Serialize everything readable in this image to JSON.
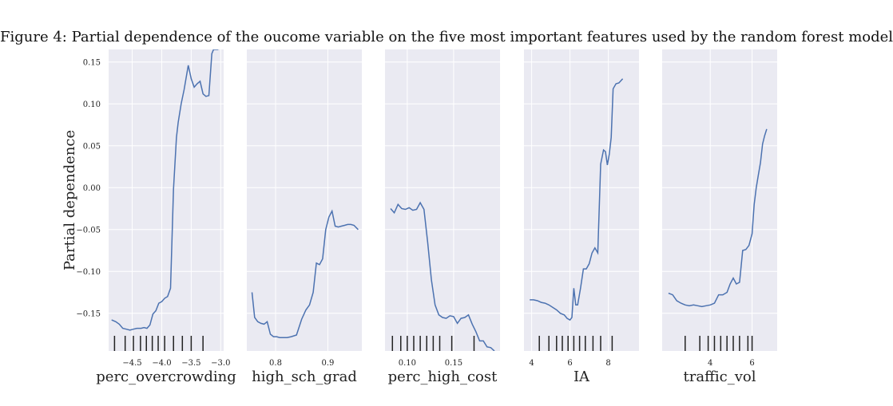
{
  "figure": {
    "title": "Figure 4: Partial dependence of the oucome variable on the five most important features used by the random forest model",
    "ylabel": "Partial dependence",
    "line_color": "#4c72b0",
    "panel_bg": "#eaeaf2",
    "grid_color": "#ffffff"
  },
  "chart_data": [
    {
      "type": "line",
      "xlabel": "perc_overcrowding",
      "xlim": [
        -4.9,
        -2.95
      ],
      "ylim": [
        -0.195,
        0.165
      ],
      "xticks": [
        -4.5,
        -4.0,
        -3.5,
        -3.0
      ],
      "xticklabels": [
        "−4.5",
        "−4.0",
        "−3.5",
        "−3.0"
      ],
      "yticks": [
        -0.15,
        -0.1,
        -0.05,
        0.0,
        0.05,
        0.1,
        0.15
      ],
      "yticklabels": [
        "−0.15",
        "−0.10",
        "−0.05",
        "0.00",
        "0.05",
        "0.10",
        "0.15"
      ],
      "x": [
        -4.85,
        -4.78,
        -4.72,
        -4.66,
        -4.6,
        -4.54,
        -4.48,
        -4.42,
        -4.35,
        -4.3,
        -4.25,
        -4.2,
        -4.15,
        -4.1,
        -4.05,
        -4.0,
        -3.95,
        -3.9,
        -3.85,
        -3.8,
        -3.75,
        -3.72,
        -3.67,
        -3.62,
        -3.55,
        -3.5,
        -3.45,
        -3.4,
        -3.35,
        -3.3,
        -3.25,
        -3.2,
        -3.15,
        -3.12,
        -3.08,
        -3.04
      ],
      "y": [
        -0.158,
        -0.16,
        -0.163,
        -0.168,
        -0.169,
        -0.17,
        -0.169,
        -0.168,
        -0.168,
        -0.167,
        -0.168,
        -0.164,
        -0.151,
        -0.147,
        -0.138,
        -0.136,
        -0.132,
        -0.13,
        -0.12,
        -0.002,
        0.06,
        0.078,
        0.1,
        0.117,
        0.146,
        0.13,
        0.12,
        0.124,
        0.127,
        0.112,
        0.109,
        0.11,
        0.16,
        0.165,
        0.165,
        0.165
      ],
      "rug": [
        -4.8,
        -4.62,
        -4.48,
        -4.36,
        -4.26,
        -4.16,
        -4.06,
        -3.95,
        -3.8,
        -3.65,
        -3.5,
        -3.3
      ]
    },
    {
      "type": "line",
      "xlabel": "high_sch_grad",
      "xlim": [
        0.745,
        0.965
      ],
      "ylim": [
        -0.195,
        0.165
      ],
      "xticks": [
        0.8,
        0.9
      ],
      "xticklabels": [
        "0.8",
        "0.9"
      ],
      "yticks": [
        -0.15,
        -0.1,
        -0.05,
        0.0,
        0.05,
        0.1,
        0.15
      ],
      "x": [
        0.755,
        0.76,
        0.766,
        0.772,
        0.778,
        0.784,
        0.79,
        0.796,
        0.802,
        0.808,
        0.815,
        0.822,
        0.83,
        0.84,
        0.85,
        0.858,
        0.865,
        0.872,
        0.878,
        0.884,
        0.89,
        0.896,
        0.902,
        0.908,
        0.914,
        0.92,
        0.926,
        0.932,
        0.938,
        0.944,
        0.95,
        0.958
      ],
      "y": [
        -0.125,
        -0.155,
        -0.16,
        -0.162,
        -0.163,
        -0.16,
        -0.175,
        -0.178,
        -0.178,
        -0.179,
        -0.179,
        -0.179,
        -0.178,
        -0.176,
        -0.157,
        -0.146,
        -0.14,
        -0.125,
        -0.09,
        -0.092,
        -0.085,
        -0.05,
        -0.035,
        -0.028,
        -0.046,
        -0.047,
        -0.046,
        -0.045,
        -0.044,
        -0.044,
        -0.045,
        -0.05
      ]
    },
    {
      "type": "line",
      "xlabel": "perc_high_cost",
      "xlim": [
        0.076,
        0.2
      ],
      "ylim": [
        -0.195,
        0.165
      ],
      "xticks": [
        0.1,
        0.15
      ],
      "xticklabels": [
        "0.10",
        "0.15"
      ],
      "yticks": [
        -0.15,
        -0.1,
        -0.05,
        0.0,
        0.05,
        0.1,
        0.15
      ],
      "x": [
        0.082,
        0.086,
        0.09,
        0.094,
        0.098,
        0.102,
        0.106,
        0.11,
        0.114,
        0.118,
        0.122,
        0.126,
        0.13,
        0.134,
        0.138,
        0.142,
        0.146,
        0.15,
        0.154,
        0.158,
        0.162,
        0.166,
        0.17,
        0.174,
        0.178,
        0.182,
        0.186,
        0.19,
        0.194
      ],
      "y": [
        -0.025,
        -0.03,
        -0.02,
        -0.025,
        -0.026,
        -0.024,
        -0.027,
        -0.026,
        -0.018,
        -0.026,
        -0.065,
        -0.11,
        -0.14,
        -0.152,
        -0.155,
        -0.156,
        -0.153,
        -0.154,
        -0.162,
        -0.156,
        -0.155,
        -0.152,
        -0.163,
        -0.172,
        -0.183,
        -0.183,
        -0.19,
        -0.191,
        -0.195
      ],
      "rug": [
        0.084,
        0.093,
        0.1,
        0.107,
        0.114,
        0.121,
        0.128,
        0.135,
        0.148,
        0.172
      ]
    },
    {
      "type": "line",
      "xlabel": "IA",
      "xlim": [
        3.6,
        9.6
      ],
      "ylim": [
        -0.195,
        0.165
      ],
      "xticks": [
        4,
        6,
        8
      ],
      "xticklabels": [
        "4",
        "6",
        "8"
      ],
      "yticks": [
        -0.15,
        -0.1,
        -0.05,
        0.0,
        0.05,
        0.1,
        0.15
      ],
      "x": [
        3.9,
        4.1,
        4.3,
        4.5,
        4.7,
        4.9,
        5.1,
        5.3,
        5.5,
        5.7,
        5.85,
        6.0,
        6.1,
        6.2,
        6.3,
        6.4,
        6.55,
        6.7,
        6.85,
        7.0,
        7.15,
        7.3,
        7.45,
        7.6,
        7.75,
        7.85,
        7.95,
        8.05,
        8.15,
        8.25,
        8.4,
        8.55,
        8.75
      ],
      "y": [
        -0.134,
        -0.134,
        -0.135,
        -0.137,
        -0.138,
        -0.14,
        -0.143,
        -0.146,
        -0.15,
        -0.152,
        -0.156,
        -0.158,
        -0.155,
        -0.12,
        -0.14,
        -0.14,
        -0.12,
        -0.097,
        -0.097,
        -0.091,
        -0.078,
        -0.072,
        -0.078,
        0.028,
        0.045,
        0.043,
        0.027,
        0.04,
        0.06,
        0.118,
        0.124,
        0.125,
        0.13
      ],
      "rug": [
        4.4,
        4.9,
        5.3,
        5.6,
        5.9,
        6.2,
        6.5,
        6.8,
        7.2,
        7.6,
        8.2
      ]
    },
    {
      "type": "line",
      "xlabel": "traffic_vol",
      "xlim": [
        1.7,
        7.2
      ],
      "ylim": [
        -0.195,
        0.165
      ],
      "xticks": [
        4,
        6
      ],
      "xticklabels": [
        "4",
        "6"
      ],
      "yticks": [
        -0.15,
        -0.1,
        -0.05,
        0.0,
        0.05,
        0.1,
        0.15
      ],
      "x": [
        2.0,
        2.2,
        2.4,
        2.6,
        2.8,
        3.0,
        3.2,
        3.4,
        3.6,
        3.8,
        4.0,
        4.2,
        4.4,
        4.6,
        4.8,
        4.95,
        5.1,
        5.25,
        5.4,
        5.55,
        5.7,
        5.85,
        6.0,
        6.1,
        6.2,
        6.3,
        6.4,
        6.5,
        6.6,
        6.7
      ],
      "y": [
        -0.126,
        -0.128,
        -0.135,
        -0.138,
        -0.14,
        -0.141,
        -0.14,
        -0.141,
        -0.142,
        -0.141,
        -0.14,
        -0.138,
        -0.128,
        -0.128,
        -0.125,
        -0.115,
        -0.108,
        -0.115,
        -0.113,
        -0.075,
        -0.074,
        -0.069,
        -0.055,
        -0.02,
        0.0,
        0.015,
        0.03,
        0.052,
        0.062,
        0.07
      ],
      "rug": [
        2.8,
        3.5,
        3.9,
        4.2,
        4.5,
        4.8,
        5.1,
        5.4,
        5.8,
        6.0
      ]
    }
  ]
}
